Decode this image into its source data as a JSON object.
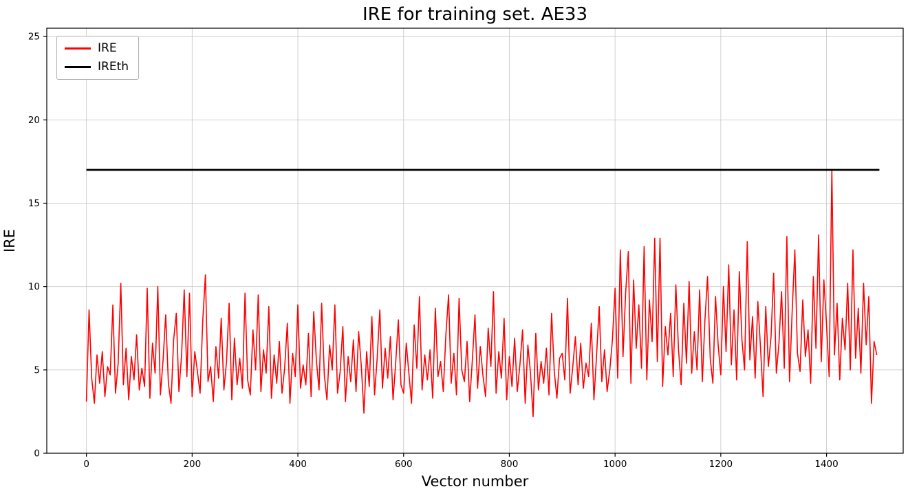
{
  "chart_data": {
    "type": "line",
    "title": "IRE for training set. AE33",
    "xlabel": "Vector number",
    "ylabel": "IRE",
    "xlim": [
      -75,
      1545
    ],
    "ylim": [
      0,
      25.5
    ],
    "x_ticks": [
      0,
      200,
      400,
      600,
      800,
      1000,
      1200,
      1400
    ],
    "y_ticks": [
      0,
      5,
      10,
      15,
      20,
      25
    ],
    "grid": true,
    "legend_position": "upper-left",
    "series": [
      {
        "name": "IRE",
        "type": "line",
        "color": "#ff0000",
        "x_start": 0,
        "x_step": 5,
        "values": [
          3.1,
          8.6,
          4.5,
          3.0,
          5.9,
          4.2,
          6.1,
          3.4,
          5.2,
          4.7,
          8.9,
          3.6,
          5.4,
          10.2,
          4.1,
          6.3,
          3.2,
          5.8,
          4.4,
          7.1,
          3.8,
          5.1,
          4.0,
          9.9,
          3.3,
          6.6,
          4.8,
          10.0,
          3.5,
          5.6,
          8.3,
          4.2,
          3.0,
          6.8,
          8.4,
          3.7,
          5.9,
          9.8,
          4.6,
          9.6,
          3.4,
          6.1,
          4.9,
          3.6,
          7.9,
          10.7,
          4.3,
          5.2,
          3.1,
          6.4,
          4.5,
          8.1,
          3.8,
          5.5,
          9.0,
          3.2,
          6.9,
          4.1,
          5.7,
          3.9,
          9.6,
          4.4,
          3.5,
          7.4,
          5.0,
          9.5,
          3.7,
          6.2,
          4.8,
          8.8,
          3.3,
          5.9,
          4.2,
          6.7,
          3.6,
          5.1,
          7.8,
          3.0,
          6.0,
          4.6,
          8.9,
          3.9,
          5.3,
          4.1,
          7.2,
          3.4,
          8.5,
          5.6,
          3.8,
          9.0,
          4.7,
          3.2,
          6.5,
          5.0,
          8.9,
          3.6,
          4.9,
          7.6,
          3.1,
          5.8,
          4.3,
          6.8,
          3.7,
          7.3,
          5.2,
          2.4,
          6.1,
          4.0,
          8.2,
          3.5,
          5.7,
          8.6,
          3.9,
          6.3,
          4.5,
          7.0,
          3.2,
          5.4,
          8.0,
          4.1,
          3.6,
          6.6,
          4.8,
          3.0,
          7.7,
          5.1,
          9.4,
          3.8,
          5.9,
          4.4,
          6.2,
          3.3,
          8.7,
          4.6,
          5.5,
          3.7,
          7.1,
          9.5,
          4.2,
          6.0,
          3.5,
          9.3,
          5.0,
          4.3,
          6.7,
          3.1,
          5.6,
          8.3,
          3.9,
          6.4,
          4.7,
          3.4,
          7.5,
          5.2,
          9.7,
          3.6,
          6.1,
          4.5,
          8.1,
          3.2,
          5.8,
          4.0,
          6.9,
          3.7,
          5.3,
          7.4,
          3.0,
          6.5,
          4.8,
          2.2,
          7.2,
          3.8,
          5.5,
          4.2,
          6.3,
          3.5,
          8.4,
          4.9,
          3.3,
          5.7,
          6.0,
          4.4,
          9.3,
          3.6,
          5.2,
          7.0,
          4.1,
          6.6,
          3.9,
          5.4,
          4.6,
          7.8,
          3.2,
          5.9,
          8.8,
          4.3,
          6.2,
          3.7,
          5.0,
          6.8,
          9.9,
          4.5,
          12.2,
          5.8,
          9.6,
          12.1,
          4.2,
          10.4,
          6.3,
          8.9,
          5.1,
          12.4,
          4.4,
          9.2,
          6.7,
          12.9,
          5.5,
          12.9,
          4.0,
          7.6,
          5.9,
          8.4,
          4.6,
          10.1,
          6.2,
          4.1,
          9.0,
          5.4,
          10.3,
          4.8,
          7.3,
          5.0,
          9.8,
          4.3,
          8.0,
          10.6,
          5.7,
          4.2,
          9.4,
          6.5,
          4.7,
          10.0,
          6.1,
          11.3,
          5.3,
          8.6,
          4.4,
          10.9,
          6.8,
          5.0,
          12.7,
          5.6,
          8.2,
          4.5,
          9.1,
          6.4,
          3.4,
          8.8,
          5.2,
          7.0,
          10.8,
          4.8,
          6.6,
          9.7,
          5.1,
          13.0,
          4.3,
          8.5,
          12.2,
          6.0,
          4.9,
          9.2,
          5.8,
          7.4,
          4.2,
          10.6,
          6.3,
          13.1,
          5.5,
          10.4,
          7.7,
          4.6,
          17.0,
          5.9,
          9.0,
          4.4,
          8.1,
          6.2,
          10.2,
          5.0,
          12.2,
          5.7,
          8.7,
          4.8,
          10.2,
          6.5,
          9.4,
          3.0,
          6.7,
          5.9
        ]
      },
      {
        "name": "IREth",
        "type": "hline",
        "color": "#000000",
        "y": 17,
        "x_range": [
          0,
          1500
        ]
      }
    ],
    "colors": {
      "ire": "#ff0000",
      "ireth": "#000000",
      "grid": "#cccccc",
      "axis": "#000000",
      "background": "#ffffff"
    }
  }
}
